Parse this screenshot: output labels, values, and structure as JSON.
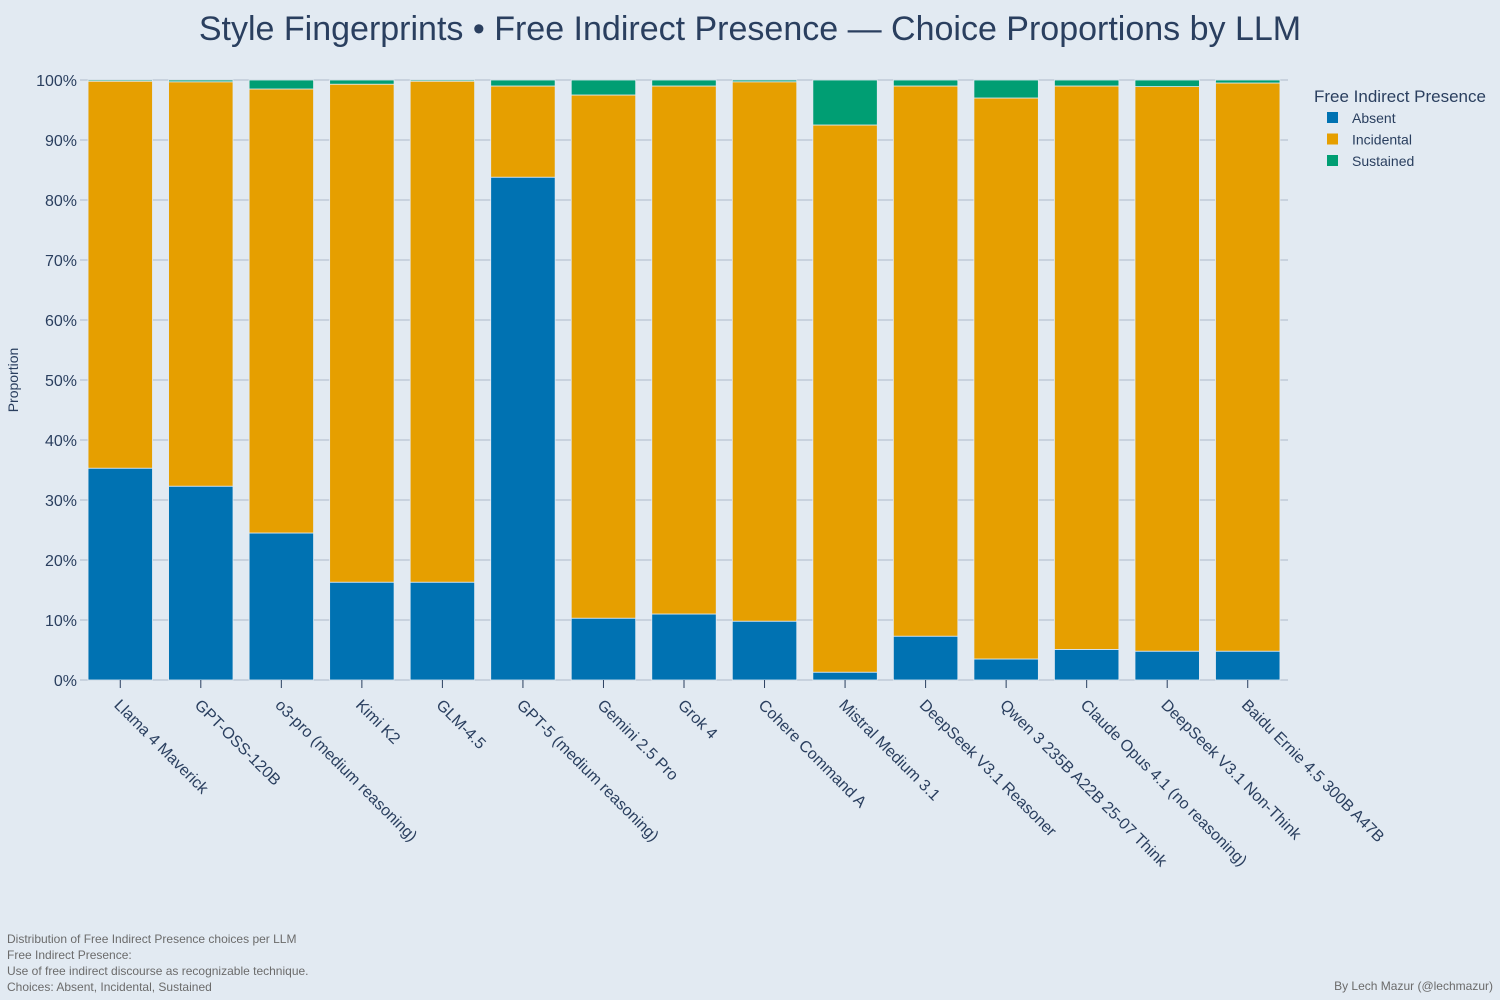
{
  "chart_data": {
    "type": "bar",
    "stacked": true,
    "title": "Style Fingerprints • Free Indirect Presence — Choice Proportions by LLM",
    "xlabel": "",
    "ylabel": "Proportion",
    "ylim": [
      0,
      1
    ],
    "yticks": [
      "0%",
      "10%",
      "20%",
      "30%",
      "40%",
      "50%",
      "60%",
      "70%",
      "80%",
      "90%",
      "100%"
    ],
    "grid": true,
    "legend_title": "Free Indirect Presence",
    "legend_position": "top-right",
    "categories": [
      "Llama 4 Maverick",
      "GPT-OSS-120B",
      "o3-pro (medium reasoning)",
      "Kimi K2",
      "GLM-4.5",
      "GPT-5 (medium reasoning)",
      "Gemini 2.5 Pro",
      "Grok 4",
      "Cohere Command A",
      "Mistral Medium 3.1",
      "DeepSeek V3.1 Reasoner",
      "Qwen 3 235B A22B 25-07 Think",
      "Claude Opus 4.1 (no reasoning)",
      "DeepSeek V3.1 Non-Think",
      "Baidu Ernie 4.5 300B A47B"
    ],
    "series": [
      {
        "name": "Absent",
        "color": "#0072b2",
        "values": [
          0.353,
          0.323,
          0.245,
          0.163,
          0.163,
          0.838,
          0.103,
          0.11,
          0.098,
          0.013,
          0.073,
          0.035,
          0.051,
          0.048,
          0.048
        ]
      },
      {
        "name": "Incidental",
        "color": "#e69f00",
        "values": [
          0.645,
          0.674,
          0.74,
          0.83,
          0.835,
          0.152,
          0.872,
          0.88,
          0.899,
          0.912,
          0.917,
          0.935,
          0.939,
          0.941,
          0.947
        ]
      },
      {
        "name": "Sustained",
        "color": "#009e73",
        "values": [
          0.002,
          0.003,
          0.015,
          0.007,
          0.002,
          0.01,
          0.025,
          0.01,
          0.003,
          0.075,
          0.01,
          0.03,
          0.01,
          0.011,
          0.005
        ]
      }
    ]
  },
  "notes": [
    "Distribution of Free Indirect Presence choices per LLM",
    "Free Indirect Presence:",
    "Use of free indirect discourse as recognizable technique.",
    "Choices: Absent, Incidental, Sustained"
  ],
  "credit": "By Lech Mazur (@lechmazur)"
}
